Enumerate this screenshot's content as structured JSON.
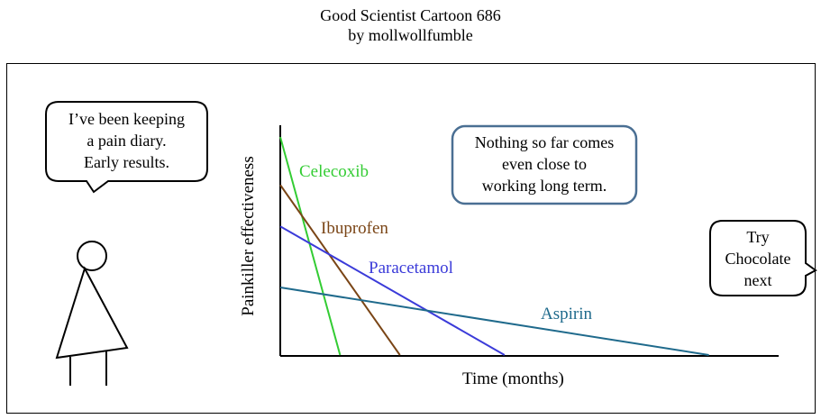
{
  "header": {
    "title": "Good Scientist Cartoon 686",
    "byline": "by mollwollfumble"
  },
  "bubbles": {
    "scientist": [
      "I’ve been keeping",
      "a pain diary.",
      "Early results."
    ],
    "note": [
      "Nothing so far comes",
      "even close to",
      "working long term."
    ],
    "suggestion": [
      "Try",
      "Chocolate",
      "next"
    ]
  },
  "chart_data": {
    "type": "line",
    "xlabel": "Time (months)",
    "ylabel": "Painkiller effectiveness",
    "series": [
      {
        "name": "Celecoxib",
        "color": "#33cc33",
        "points": [
          [
            0,
            1.0
          ],
          [
            0.12,
            0.0
          ]
        ]
      },
      {
        "name": "Ibuprofen",
        "color": "#7a4516",
        "points": [
          [
            0,
            0.78
          ],
          [
            0.24,
            0.0
          ]
        ]
      },
      {
        "name": "Paracetamol",
        "color": "#3b3bd9",
        "points": [
          [
            0,
            0.59
          ],
          [
            0.45,
            0.0
          ]
        ]
      },
      {
        "name": "Aspirin",
        "color": "#1f6a8c",
        "points": [
          [
            0,
            0.31
          ],
          [
            0.86,
            0.0
          ]
        ]
      }
    ]
  }
}
